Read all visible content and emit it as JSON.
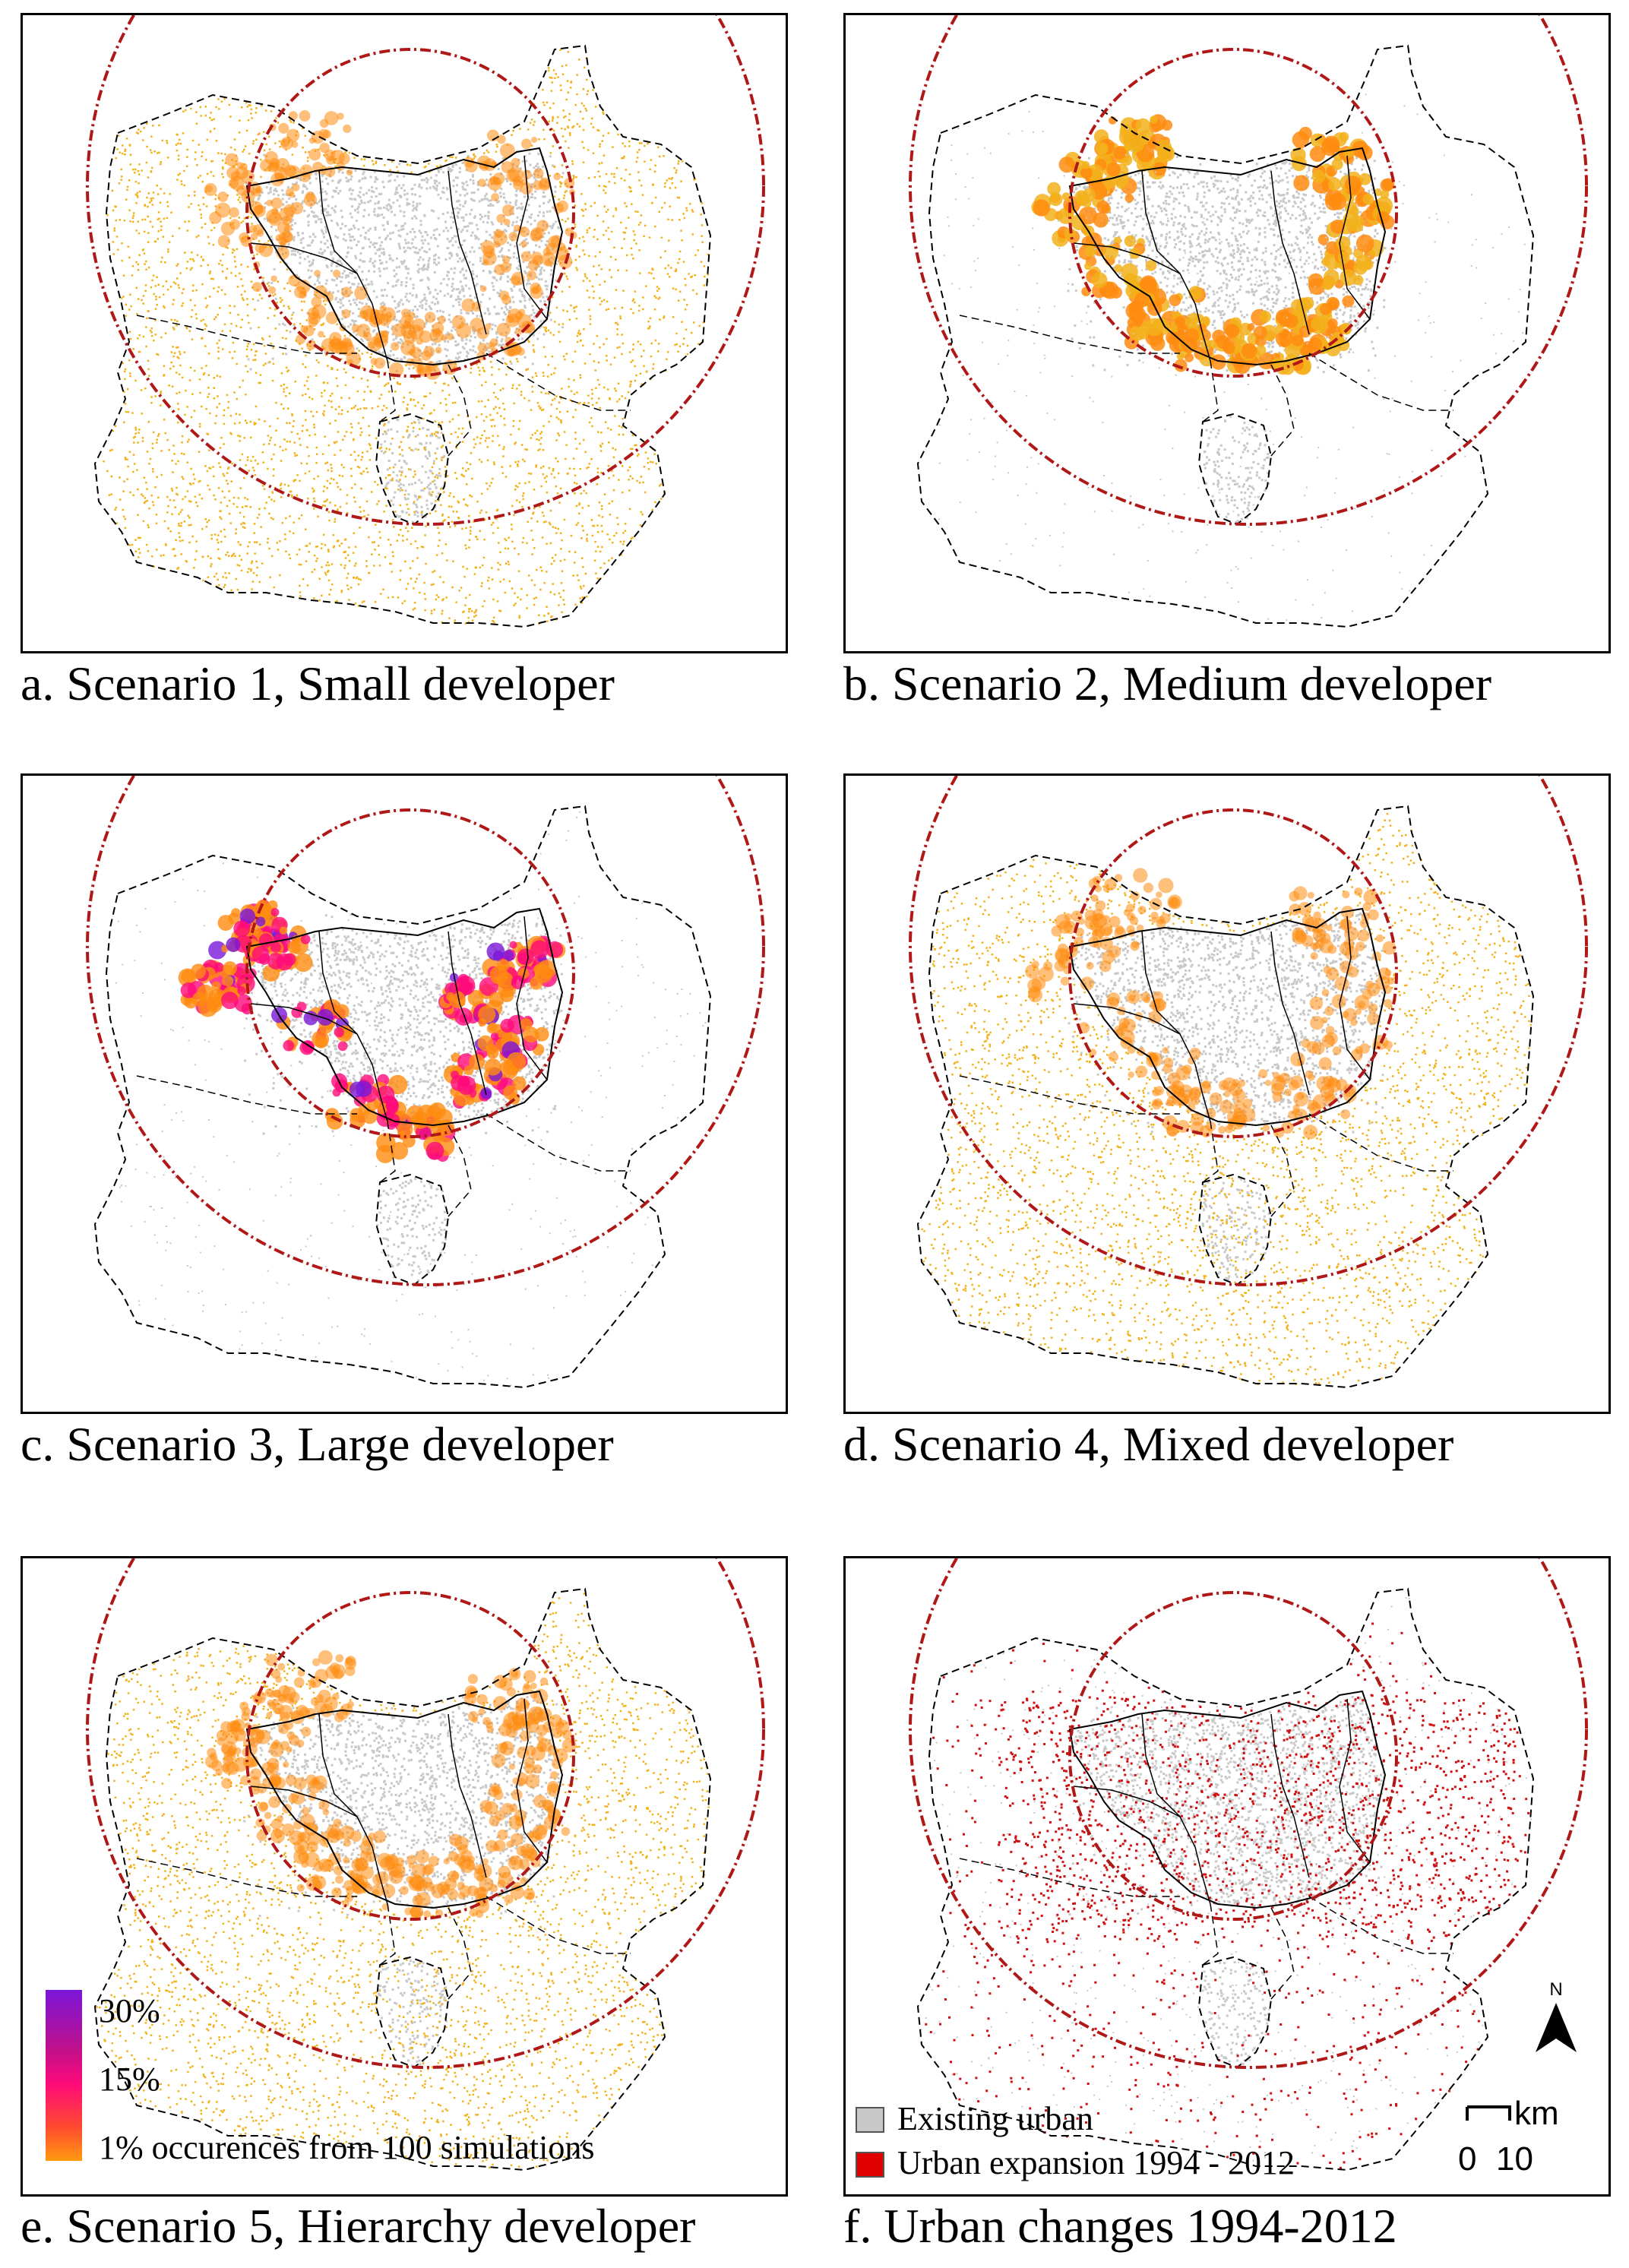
{
  "figure": {
    "panels": [
      {
        "id": "a",
        "caption": "a. Scenario 1, Small developer",
        "pattern": "dispersed",
        "intensity": 0.45
      },
      {
        "id": "b",
        "caption": "b. Scenario 2, Medium developer",
        "pattern": "medium-clusters",
        "intensity": 0.6
      },
      {
        "id": "c",
        "caption": "c. Scenario 3, Large developer",
        "pattern": "large-clusters",
        "intensity": 0.9
      },
      {
        "id": "d",
        "caption": "d. Scenario 4, Mixed developer",
        "pattern": "dispersed",
        "intensity": 0.5
      },
      {
        "id": "e",
        "caption": "e. Scenario 5, Hierarchy developer",
        "pattern": "hierarchy",
        "intensity": 0.55
      },
      {
        "id": "f",
        "caption": "f. Urban changes 1994-2012",
        "pattern": "observed",
        "intensity": 0.5
      }
    ]
  },
  "legend_occurrence": {
    "labels": [
      "30%",
      "15%",
      "1% occurences from 100 simulations"
    ],
    "values_percent": [
      30,
      15,
      1
    ],
    "colors": [
      "#7b16d8",
      "#ff0a7a",
      "#ff8c10"
    ]
  },
  "legend_urban": {
    "items": [
      {
        "label": "Existing urban",
        "color": "#c8c8c8"
      },
      {
        "label": "Urban expansion 1994 - 2012",
        "color": "#e00000"
      }
    ]
  },
  "north_arrow": {
    "label": "N"
  },
  "scale_bar": {
    "unit": "km",
    "ticks": [
      "0",
      "10"
    ]
  },
  "colors": {
    "existing_urban": "#c8c8c8",
    "simulated_low": "#f2b21b",
    "simulated_mid": "#ff8c10",
    "simulated_high": "#ff0a7a",
    "simulated_max": "#7b16d8",
    "urban_expansion": "#d01010",
    "buffer_circle": "#b01818",
    "boundary": "#000000"
  }
}
